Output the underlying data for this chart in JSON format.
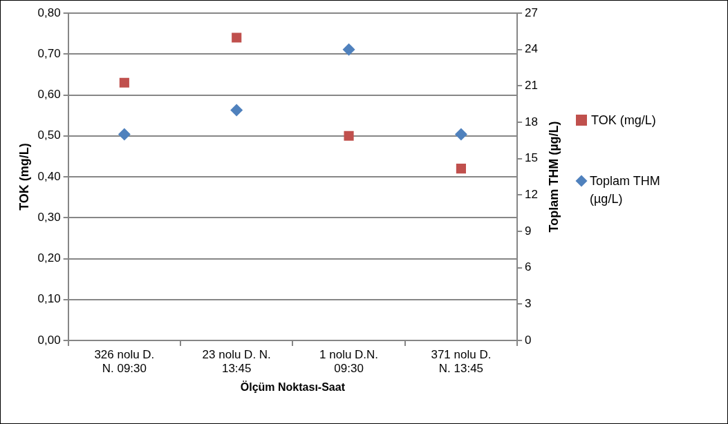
{
  "chart_data": {
    "type": "scatter",
    "categories": [
      "326 nolu D. N. 09:30",
      "23 nolu D. N. 13:45",
      "1 nolu D.N. 09:30",
      "371 nolu D. N. 13:45"
    ],
    "series": [
      {
        "name": "TOK (mg/L)",
        "color": "#c0504d",
        "marker": "square",
        "values": [
          0.63,
          0.74,
          0.5,
          0.42
        ]
      },
      {
        "name": "Toplam THM (µg/L)",
        "color": "#4f81bd",
        "marker": "diamond",
        "axis": "y2",
        "values": [
          17,
          19,
          24,
          17
        ]
      }
    ],
    "xlabel": "Ölçüm Noktası-Saat",
    "ylabel": "TOK (mg/L)",
    "y2label": "Toplam THM (µg/L)",
    "ylim": [
      0,
      0.8
    ],
    "yticks": [
      {
        "value": 0,
        "label": "0,00"
      },
      {
        "value": 0.1,
        "label": "0,10"
      },
      {
        "value": 0.2,
        "label": "0,20"
      },
      {
        "value": 0.3,
        "label": "0,30"
      },
      {
        "value": 0.4,
        "label": "0,40"
      },
      {
        "value": 0.5,
        "label": "0,50"
      },
      {
        "value": 0.6,
        "label": "0,60"
      },
      {
        "value": 0.7,
        "label": "0,70"
      },
      {
        "value": 0.8,
        "label": "0,80"
      }
    ],
    "y2lim": [
      0,
      27
    ],
    "y2ticks": [
      0,
      3,
      6,
      9,
      12,
      15,
      18,
      21,
      24,
      27
    ],
    "grid": "y",
    "legend": "right"
  }
}
